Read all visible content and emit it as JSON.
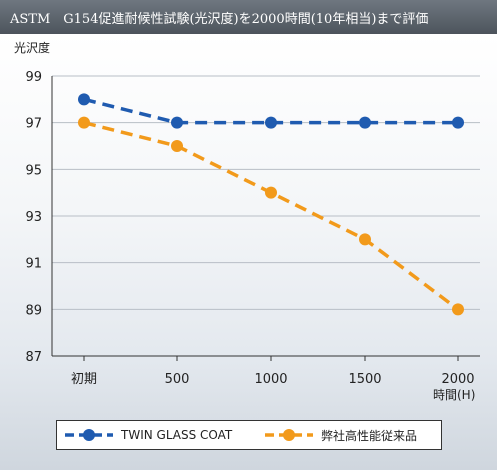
{
  "title": "ASTM　G154促進耐候性試験(光沢度)を2000時間(10年相当)まで評価",
  "chart_data": {
    "type": "line",
    "ylabel": "光沢度",
    "xlabel": "時間(H)",
    "categories": [
      "初期",
      "500",
      "1000",
      "1500",
      "2000"
    ],
    "ylim": [
      87,
      99
    ],
    "yticks": [
      87,
      89,
      91,
      93,
      95,
      97,
      99
    ],
    "grid": true,
    "legend_position": "bottom",
    "series": [
      {
        "name": "TWIN GLASS COAT",
        "values": [
          98,
          97,
          97,
          97,
          97
        ],
        "color": "#1f5bb0"
      },
      {
        "name": "弊社高性能従来品",
        "values": [
          97,
          96,
          94,
          92,
          89
        ],
        "color": "#f29a1b"
      }
    ]
  }
}
